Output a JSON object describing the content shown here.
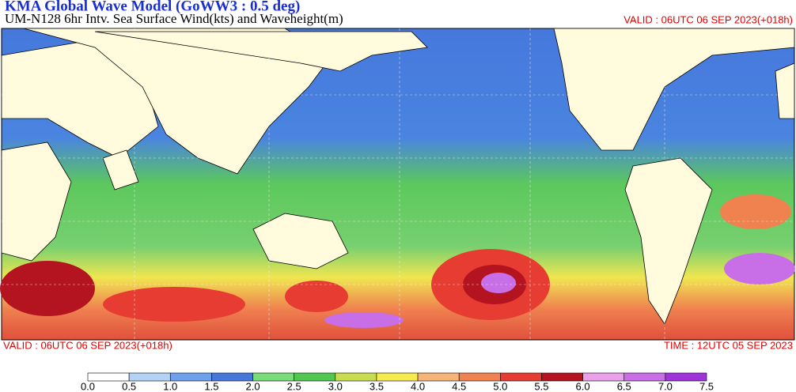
{
  "header": {
    "title": "KMA  Global Wave Model (GoWW3 : 0.5 deg)",
    "subtitle": "UM-N128  6hr Intv. Sea Surface Wind(kts) and Waveheight(m)",
    "valid_top": "VALID : 06UTC 06 SEP 2023(+018h)"
  },
  "footer": {
    "valid": "VALID : 06UTC 06 SEP 2023(+018h)",
    "time": "TIME : 12UTC 05 SEP 2023"
  },
  "colorbar": {
    "labels": [
      "0.0",
      "0.5",
      "1.0",
      "1.5",
      "2.0",
      "2.5",
      "3.0",
      "3.5",
      "4.0",
      "4.5",
      "5.0",
      "5.5",
      "6.0",
      "6.5",
      "7.0",
      "7.5"
    ],
    "colors": [
      "#ffffff",
      "#b4d2f5",
      "#6ea0eb",
      "#4678dc",
      "#78dc78",
      "#50c850",
      "#c8dc50",
      "#f5eb50",
      "#f5b478",
      "#f08250",
      "#e63c32",
      "#b41420",
      "#eba0eb",
      "#c86ee6",
      "#a032dc"
    ]
  }
}
